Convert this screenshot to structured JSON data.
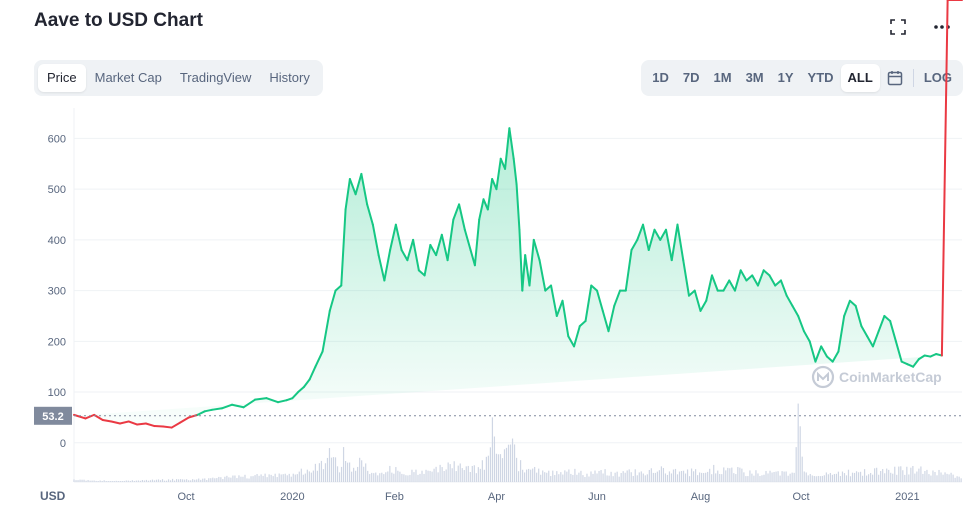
{
  "header": {
    "title": "Aave to USD Chart"
  },
  "icons": {
    "fullscreen": "fullscreen-icon",
    "more": "more-icon",
    "calendar": "calendar-icon"
  },
  "view_tabs": [
    {
      "label": "Price",
      "active": true
    },
    {
      "label": "Market Cap",
      "active": false
    },
    {
      "label": "TradingView",
      "active": false
    },
    {
      "label": "History",
      "active": false
    }
  ],
  "range_tabs": [
    {
      "label": "1D",
      "active": false
    },
    {
      "label": "7D",
      "active": false
    },
    {
      "label": "1M",
      "active": false
    },
    {
      "label": "3M",
      "active": false
    },
    {
      "label": "1Y",
      "active": false
    },
    {
      "label": "YTD",
      "active": false
    },
    {
      "label": "ALL",
      "active": true
    }
  ],
  "log_label": "LOG",
  "colors": {
    "up": "#16c784",
    "down": "#ea3943",
    "baseline_badge": "#808a9d",
    "grid": "#eff2f5"
  },
  "chart_data": {
    "type": "area",
    "currency_label": "USD",
    "watermark": "CoinMarketCap",
    "baseline_value": 53.2,
    "baseline_label": "53.2",
    "y_ticks": [
      0,
      100,
      200,
      300,
      400,
      500,
      600
    ],
    "ylim": [
      -30,
      660
    ],
    "x_labels": [
      {
        "label": "Oct",
        "t": 7
      },
      {
        "label": "2020",
        "t": 14.4
      },
      {
        "label": "Feb",
        "t": 21.5
      },
      {
        "label": "Apr",
        "t": 28.6
      },
      {
        "label": "Jun",
        "t": 35.6
      },
      {
        "label": "Aug",
        "t": 42.8
      },
      {
        "label": "Oct",
        "t": 49.8
      },
      {
        "label": "2021",
        "t": 57.2
      }
    ],
    "xlim": [
      -0.8,
      61
    ],
    "price": {
      "t": [
        -0.8,
        0,
        0.6,
        1.2,
        1.8,
        2.4,
        3,
        3.6,
        4.2,
        4.8,
        5.4,
        6,
        6.6,
        7.2,
        7.8,
        8.3,
        8.8,
        9.5,
        10.2,
        11,
        11.8,
        12.6,
        13.4,
        14,
        14.4,
        14.8,
        15.2,
        15.6,
        16,
        16.5,
        17,
        17.4,
        17.8,
        18.1,
        18.4,
        18.8,
        19.2,
        19.6,
        20,
        20.4,
        20.8,
        21.2,
        21.6,
        22,
        22.4,
        22.8,
        23.2,
        23.6,
        24,
        24.4,
        24.8,
        25.2,
        25.6,
        26,
        26.4,
        26.8,
        27.1,
        27.4,
        27.7,
        28,
        28.3,
        28.6,
        28.9,
        29.2,
        29.5,
        29.8,
        30,
        30.2,
        30.4,
        30.6,
        30.9,
        31.2,
        31.6,
        32,
        32.4,
        32.8,
        33.2,
        33.6,
        34,
        34.4,
        34.8,
        35.2,
        35.6,
        36,
        36.4,
        36.8,
        37.2,
        37.6,
        38,
        38.4,
        38.8,
        39.2,
        39.6,
        40,
        40.4,
        40.8,
        41.2,
        41.6,
        42,
        42.4,
        42.8,
        43.2,
        43.6,
        44,
        44.4,
        44.8,
        45.2,
        45.6,
        46,
        46.4,
        46.8,
        47.2,
        47.6,
        48,
        48.4,
        48.8,
        49.2,
        49.6,
        50,
        50.4,
        50.8,
        51.2,
        51.6,
        52,
        52.4,
        52.8,
        53.2,
        53.6,
        54,
        54.4,
        54.8,
        55.2,
        55.6,
        56,
        56.4,
        56.8,
        57.2,
        57.6,
        58,
        58.4,
        58.8,
        59.2,
        59.6,
        60,
        60.5,
        61
      ],
      "v": [
        55,
        48,
        55,
        45,
        42,
        38,
        42,
        36,
        38,
        33,
        32,
        30,
        40,
        50,
        55,
        62,
        65,
        68,
        75,
        70,
        85,
        88,
        80,
        84,
        88,
        100,
        110,
        125,
        150,
        180,
        260,
        300,
        310,
        460,
        520,
        490,
        530,
        470,
        430,
        370,
        320,
        380,
        430,
        380,
        360,
        400,
        340,
        330,
        390,
        370,
        410,
        360,
        440,
        470,
        420,
        380,
        350,
        440,
        480,
        460,
        520,
        500,
        560,
        540,
        620,
        560,
        510,
        420,
        300,
        370,
        310,
        400,
        360,
        300,
        310,
        250,
        280,
        210,
        190,
        230,
        240,
        310,
        300,
        260,
        220,
        270,
        300,
        300,
        380,
        400,
        430,
        380,
        420,
        400,
        420,
        360,
        430,
        360,
        290,
        300,
        260,
        280,
        330,
        300,
        300,
        320,
        300,
        340,
        320,
        330,
        310,
        340,
        330,
        310,
        320,
        290,
        270,
        250,
        220,
        200,
        160,
        190,
        170,
        160,
        180,
        250,
        280,
        270,
        230,
        210,
        190,
        220,
        250,
        240,
        200,
        160,
        155,
        150,
        165,
        172,
        170,
        175,
        172
      ]
    },
    "volume": {
      "t": [
        -0.8,
        2,
        5,
        8,
        10,
        12,
        14,
        15,
        16,
        16.6,
        17,
        17.8,
        18,
        18.4,
        19,
        20,
        21,
        22,
        23,
        24,
        25,
        26,
        27,
        28,
        28.4,
        29,
        29.5,
        30,
        31,
        32,
        33,
        34,
        35,
        36,
        37,
        38,
        40,
        42,
        44,
        46,
        48,
        49.4,
        49.6,
        50,
        52,
        54,
        56,
        58,
        60,
        61
      ],
      "v": [
        2,
        1,
        2,
        3,
        5,
        6,
        8,
        10,
        14,
        18,
        26,
        12,
        40,
        16,
        20,
        10,
        14,
        10,
        12,
        10,
        14,
        18,
        12,
        20,
        60,
        20,
        55,
        18,
        12,
        10,
        8,
        10,
        8,
        10,
        8,
        10,
        12,
        10,
        14,
        10,
        8,
        12,
        60,
        10,
        8,
        10,
        12,
        12,
        8,
        6
      ],
      "vmax": 60
    }
  }
}
